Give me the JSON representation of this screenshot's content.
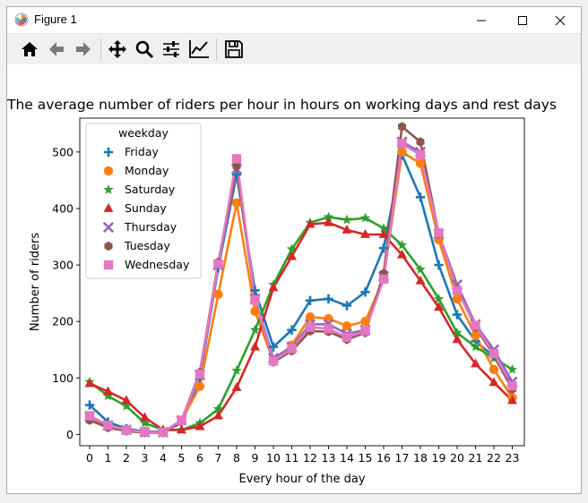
{
  "window": {
    "title": "Figure 1"
  },
  "toolbar": {
    "buttons": [
      {
        "name": "home",
        "icon": "home-icon"
      },
      {
        "name": "back",
        "icon": "arrow-left-icon"
      },
      {
        "name": "forward",
        "icon": "arrow-right-icon"
      },
      {
        "name": "pan",
        "icon": "move-icon"
      },
      {
        "name": "zoom",
        "icon": "magnifier-icon"
      },
      {
        "name": "subplots",
        "icon": "sliders-icon"
      },
      {
        "name": "axes",
        "icon": "line-chart-icon"
      },
      {
        "name": "save",
        "icon": "floppy-disk-icon"
      }
    ]
  },
  "chart_data": {
    "type": "line",
    "title": "The average number of riders per hour in hours on working days and rest days",
    "xlabel": "Every hour of the day",
    "ylabel": "Number of riders",
    "categories": [
      "0",
      "1",
      "2",
      "3",
      "4",
      "5",
      "6",
      "7",
      "8",
      "9",
      "10",
      "11",
      "12",
      "13",
      "14",
      "15",
      "16",
      "17",
      "18",
      "19",
      "20",
      "21",
      "22",
      "23"
    ],
    "ylim": [
      -20,
      560
    ],
    "yticks": [
      0,
      100,
      200,
      300,
      400,
      500
    ],
    "legend": {
      "title": "weekday",
      "placement": "top-left"
    },
    "grid": false,
    "series": [
      {
        "name": "Friday",
        "color": "#1f77b4",
        "marker": "plus",
        "values": [
          52,
          22,
          10,
          5,
          5,
          20,
          100,
          295,
          460,
          255,
          155,
          185,
          237,
          240,
          228,
          252,
          330,
          495,
          420,
          300,
          212,
          165,
          138,
          85
        ]
      },
      {
        "name": "Monday",
        "color": "#ff7f0e",
        "marker": "circle",
        "values": [
          30,
          15,
          8,
          4,
          4,
          25,
          85,
          248,
          410,
          218,
          130,
          158,
          208,
          205,
          192,
          200,
          275,
          500,
          480,
          345,
          240,
          175,
          115,
          65
        ]
      },
      {
        "name": "Saturday",
        "color": "#2ca02c",
        "marker": "star",
        "values": [
          93,
          68,
          50,
          20,
          8,
          8,
          20,
          45,
          113,
          185,
          265,
          328,
          375,
          385,
          380,
          383,
          365,
          335,
          292,
          240,
          180,
          155,
          135,
          115
        ]
      },
      {
        "name": "Sunday",
        "color": "#d62728",
        "marker": "triangle",
        "values": [
          90,
          76,
          60,
          30,
          8,
          8,
          14,
          33,
          83,
          155,
          260,
          315,
          372,
          375,
          362,
          354,
          354,
          318,
          272,
          225,
          168,
          125,
          92,
          60
        ]
      },
      {
        "name": "Thursday",
        "color": "#9467bd",
        "marker": "x",
        "values": [
          32,
          16,
          8,
          4,
          4,
          25,
          105,
          300,
          470,
          240,
          135,
          155,
          195,
          195,
          178,
          185,
          280,
          518,
          500,
          355,
          265,
          195,
          150,
          93
        ]
      },
      {
        "name": "Tuesday",
        "color": "#8c564b",
        "marker": "hexagon",
        "values": [
          25,
          12,
          6,
          3,
          3,
          25,
          110,
          305,
          475,
          238,
          128,
          148,
          183,
          182,
          168,
          180,
          285,
          545,
          518,
          355,
          258,
          190,
          140,
          80
        ]
      },
      {
        "name": "Wednesday",
        "color": "#e377c2",
        "marker": "square",
        "values": [
          33,
          16,
          8,
          4,
          4,
          25,
          107,
          302,
          488,
          238,
          130,
          152,
          190,
          187,
          172,
          183,
          275,
          515,
          495,
          357,
          255,
          193,
          143,
          86
        ]
      }
    ]
  }
}
